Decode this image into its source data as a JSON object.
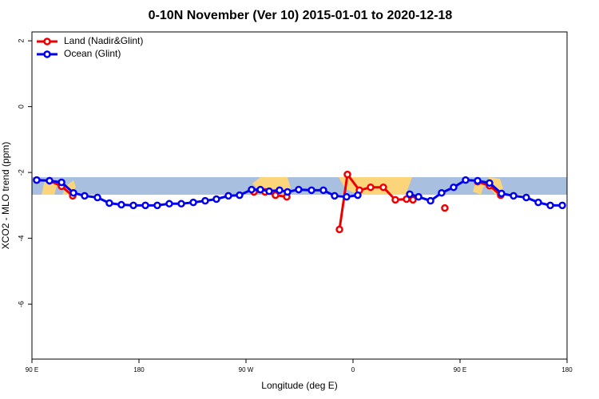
{
  "chart_data": {
    "type": "line",
    "title": "0-10N November (Ver 10)   2015-01-01 to 2020-12-18",
    "x_label": "Longitude (deg E)",
    "y_label": "XCO2 - MLO trend (ppm)",
    "xlim": [
      90,
      540
    ],
    "ylim": [
      -7.67,
      2.27
    ],
    "xticks": [
      {
        "value": 90,
        "label": "90 E"
      },
      180,
      {
        "value": 270,
        "label": "90 W"
      },
      {
        "value": 360,
        "label": "0"
      },
      {
        "value": 450,
        "label": "90 E"
      },
      {
        "value": 540,
        "label": "180"
      }
    ],
    "yticks": [
      2,
      0,
      -2,
      -4,
      -6
    ],
    "legend": "top-left",
    "series": [
      {
        "name": "Land (Nadir&Glint)",
        "color": "#ee0000",
        "x": [
          94.0,
          104.8,
          114.9,
          124.3,
          null,
          276.7,
          286.1,
          294.8,
          304.3,
          null,
          348.6,
          355.3,
          365.4,
          374.8,
          385.5,
          395.6,
          405.0,
          410.4,
          null,
          437.2,
          null,
          464.8,
          474.8,
          484.2
        ],
        "values": [
          -2.23,
          -2.25,
          -2.42,
          -2.71,
          null,
          -2.59,
          -2.59,
          -2.69,
          -2.74,
          null,
          -3.73,
          -2.06,
          -2.54,
          -2.45,
          -2.45,
          -2.83,
          -2.81,
          -2.83,
          null,
          -3.08,
          null,
          -2.28,
          -2.4,
          -2.69
        ]
      },
      {
        "name": "Ocean (Glint)",
        "color": "#0000ee",
        "x": [
          94.0,
          104.8,
          114.9,
          124.9,
          134.3,
          145.1,
          155.1,
          165.2,
          175.3,
          185.4,
          195.4,
          205.5,
          215.6,
          225.7,
          235.7,
          245.1,
          255.2,
          264.6,
          274.7,
          282.1,
          289.5,
          298.2,
          304.9,
          314.3,
          325.1,
          335.1,
          344.5,
          354.6,
          364.0,
          null,
          407.7,
          415.1,
          425.2,
          434.5,
          444.6,
          454.7,
          464.8,
          474.8,
          484.9,
          495.0,
          505.7,
          515.8,
          525.9,
          536.0
        ],
        "values": [
          -2.23,
          -2.25,
          -2.3,
          -2.62,
          -2.71,
          -2.76,
          -2.93,
          -2.98,
          -3.0,
          -3.0,
          -3.0,
          -2.95,
          -2.95,
          -2.91,
          -2.86,
          -2.81,
          -2.71,
          -2.69,
          -2.52,
          -2.52,
          -2.57,
          -2.54,
          -2.59,
          -2.52,
          -2.54,
          -2.54,
          -2.71,
          -2.74,
          -2.69,
          null,
          -2.66,
          -2.74,
          -2.86,
          -2.62,
          -2.45,
          -2.23,
          -2.25,
          -2.32,
          -2.64,
          -2.71,
          -2.76,
          -2.91,
          -3.0,
          -3.0
        ]
      }
    ]
  }
}
